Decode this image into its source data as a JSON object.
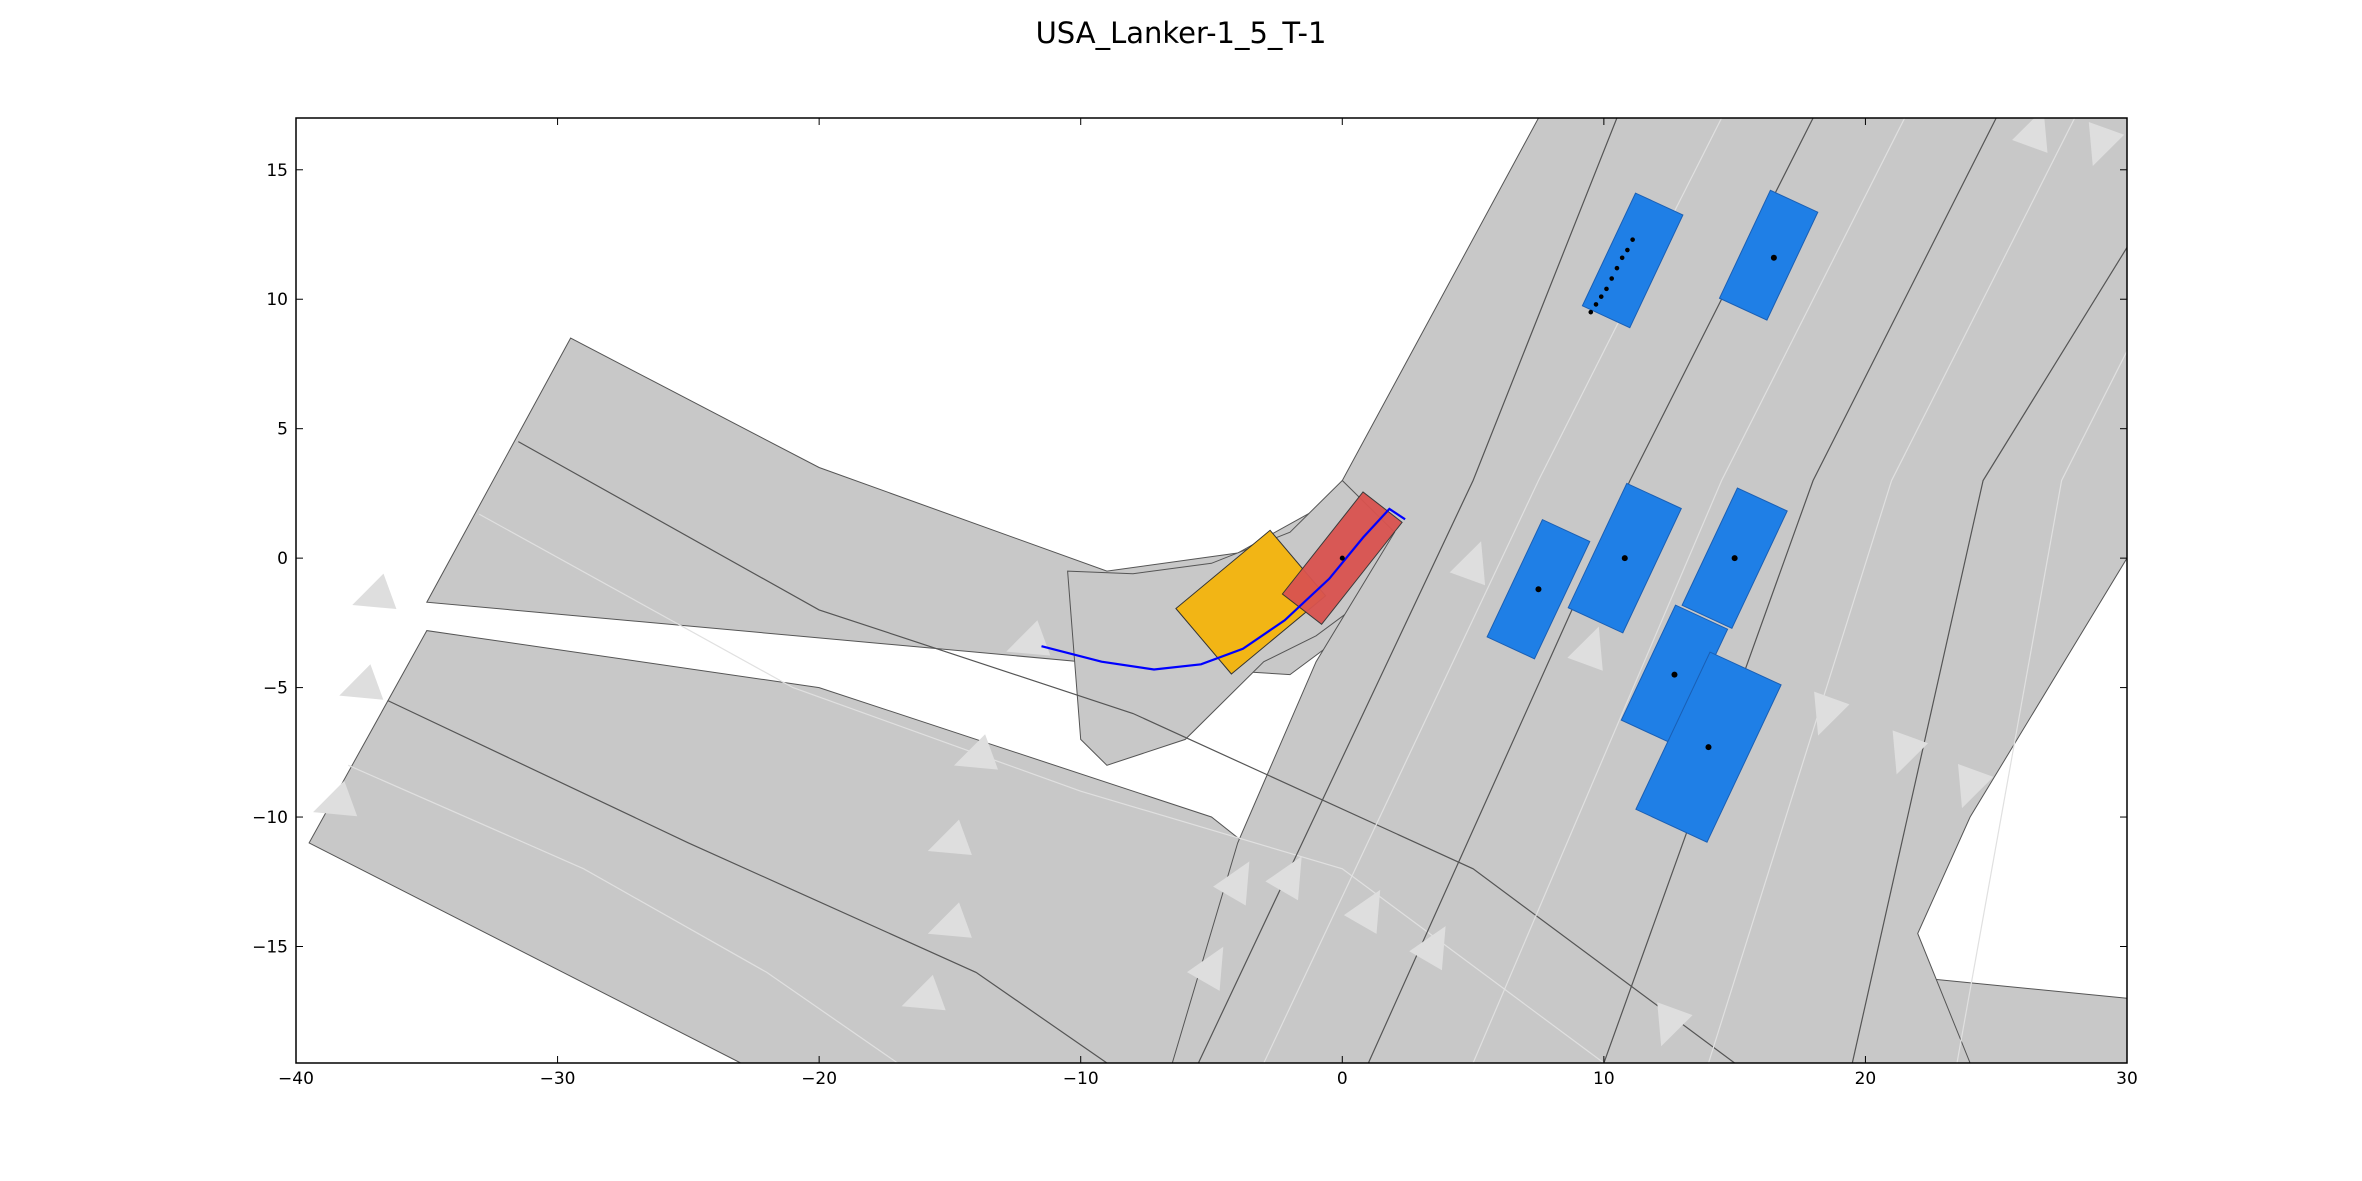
{
  "chart_data": {
    "type": "scatter",
    "title": "USA_Lanker-1_5_T-1",
    "xlabel": "",
    "ylabel": "",
    "xlim": [
      -40,
      30
    ],
    "ylim": [
      -19.5,
      17
    ],
    "xticks": [
      -40,
      -30,
      -20,
      -10,
      0,
      10,
      20,
      30
    ],
    "yticks": [
      -15,
      -10,
      -5,
      0,
      5,
      10,
      15
    ],
    "grid": false,
    "colors": {
      "road": "#c8c8c8",
      "road_edge": "#555555",
      "lane_divider": "#e0e0e0",
      "arrow": "#dedede",
      "obstacle": "#1f7fe6",
      "ego": "#d9534f",
      "goal": "#f2b515",
      "trajectory": "#0000ff"
    },
    "road_regions": [
      {
        "name": "top-left-approach",
        "points": [
          [
            -29.5,
            8.5
          ],
          [
            -35,
            -1.7
          ],
          [
            -10,
            -4
          ],
          [
            -2,
            -4.5
          ],
          [
            0,
            -3
          ],
          [
            3,
            0
          ],
          [
            4.5,
            3
          ],
          [
            1,
            3
          ],
          [
            -4,
            0.2
          ],
          [
            -9,
            -0.5
          ],
          [
            -20,
            3.5
          ]
        ]
      },
      {
        "name": "curve-inner",
        "points": [
          [
            -10.5,
            -0.5
          ],
          [
            -8,
            -0.6
          ],
          [
            -5,
            -0.2
          ],
          [
            -2,
            1
          ],
          [
            0,
            3
          ],
          [
            3,
            3
          ],
          [
            2,
            0.5
          ],
          [
            1,
            -1.5
          ],
          [
            -1,
            -3
          ],
          [
            -3,
            -4
          ],
          [
            -6,
            -7
          ],
          [
            -9,
            -8
          ],
          [
            -10,
            -7
          ]
        ]
      },
      {
        "name": "bottom-left-roadway",
        "points": [
          [
            -35,
            -2.8
          ],
          [
            -39.5,
            -11
          ],
          [
            -23,
            -19.5
          ],
          [
            30,
            -19.5
          ],
          [
            30,
            -17
          ],
          [
            0,
            -14
          ],
          [
            -5,
            -10
          ],
          [
            -20,
            -5
          ]
        ]
      },
      {
        "name": "main-vertical-road",
        "points": [
          [
            7.5,
            17
          ],
          [
            30,
            17
          ],
          [
            30,
            0
          ],
          [
            24,
            -10
          ],
          [
            22,
            -14.5
          ],
          [
            24,
            -19.5
          ],
          [
            -6.5,
            -19.5
          ],
          [
            -4,
            -11
          ],
          [
            -1,
            -4
          ],
          [
            2,
            1
          ],
          [
            0,
            3
          ]
        ]
      }
    ],
    "lane_lines": [
      [
        [
          -31.5,
          4.5
        ],
        [
          -20,
          -2
        ],
        [
          -8,
          -6
        ],
        [
          5,
          -12
        ],
        [
          15,
          -19.5
        ]
      ],
      [
        [
          -33,
          1.7
        ],
        [
          -21,
          -5
        ],
        [
          -10,
          -9
        ],
        [
          0,
          -12
        ],
        [
          10,
          -19.5
        ]
      ],
      [
        [
          -36.5,
          -5.5
        ],
        [
          -25,
          -11
        ],
        [
          -14,
          -16
        ],
        [
          -9,
          -19.5
        ]
      ],
      [
        [
          -38,
          -8
        ],
        [
          -29,
          -12
        ],
        [
          -22,
          -16
        ],
        [
          -17,
          -19.5
        ]
      ],
      [
        [
          -5.5,
          -19.5
        ],
        [
          5,
          3
        ],
        [
          10.5,
          17
        ]
      ],
      [
        [
          -3,
          -19.5
        ],
        [
          7.5,
          3
        ],
        [
          14.5,
          17
        ]
      ],
      [
        [
          1,
          -19.5
        ],
        [
          11,
          3
        ],
        [
          18,
          17
        ]
      ],
      [
        [
          5,
          -19.5
        ],
        [
          14.5,
          3
        ],
        [
          21.5,
          17
        ]
      ],
      [
        [
          10,
          -19.5
        ],
        [
          18,
          3
        ],
        [
          25,
          17
        ]
      ],
      [
        [
          14,
          -19.5
        ],
        [
          21,
          3
        ],
        [
          28,
          17
        ]
      ],
      [
        [
          19.5,
          -19.5
        ],
        [
          24.5,
          3
        ],
        [
          30,
          12
        ]
      ],
      [
        [
          23.5,
          -19.5
        ],
        [
          27.5,
          3
        ],
        [
          30,
          8
        ]
      ]
    ],
    "direction_arrows": [
      [
        -12,
        -3.3,
        200
      ],
      [
        -14,
        -7.7,
        200
      ],
      [
        -15,
        -11,
        200
      ],
      [
        -15,
        -14.2,
        200
      ],
      [
        -16,
        -17,
        200
      ],
      [
        -37,
        -1.5,
        200
      ],
      [
        -37.5,
        -5,
        200
      ],
      [
        -38.5,
        -9.5,
        200
      ],
      [
        -4,
        -12.5,
        60
      ],
      [
        -2,
        -12.3,
        60
      ],
      [
        1,
        -13.6,
        60
      ],
      [
        3.5,
        -15,
        60
      ],
      [
        -5,
        -15.8,
        60
      ],
      [
        5,
        -0.2,
        70
      ],
      [
        9.5,
        -3.5,
        70
      ],
      [
        26.5,
        16.5,
        70
      ],
      [
        18.5,
        -6,
        250
      ],
      [
        21.5,
        -7.5,
        250
      ],
      [
        24,
        -8.8,
        250
      ],
      [
        29,
        16,
        250
      ],
      [
        12.5,
        -18,
        250
      ]
    ],
    "obstacles": [
      {
        "cx": 7.5,
        "cy": -1.2,
        "len": 5,
        "wid": 2,
        "angle": 65
      },
      {
        "cx": 10.8,
        "cy": 0,
        "len": 5.3,
        "wid": 2.3,
        "angle": 65
      },
      {
        "cx": 15,
        "cy": 0,
        "len": 5,
        "wid": 2.1,
        "angle": 65
      },
      {
        "cx": 12.7,
        "cy": -4.5,
        "len": 4.9,
        "wid": 2.2,
        "angle": 65
      },
      {
        "cx": 14,
        "cy": -7.3,
        "len": 6.7,
        "wid": 3,
        "angle": 65
      },
      {
        "cx": 11.1,
        "cy": 11.5,
        "len": 4.8,
        "wid": 2,
        "angle": 65
      },
      {
        "cx": 16.3,
        "cy": 11.7,
        "len": 4.6,
        "wid": 2,
        "angle": 65
      }
    ],
    "obstacle_centers": [
      [
        7.5,
        -1.2
      ],
      [
        10.8,
        0
      ],
      [
        15,
        0
      ],
      [
        12.7,
        -4.5
      ],
      [
        14,
        -7.3
      ],
      [
        16.5,
        11.6
      ]
    ],
    "predicted_path": [
      [
        9.5,
        9.5
      ],
      [
        9.7,
        9.8
      ],
      [
        9.9,
        10.1
      ],
      [
        10.1,
        10.4
      ],
      [
        10.3,
        10.8
      ],
      [
        10.5,
        11.2
      ],
      [
        10.7,
        11.6
      ],
      [
        10.9,
        11.9
      ],
      [
        11.1,
        12.3
      ]
    ],
    "goal_region": {
      "cx": -3.5,
      "cy": -1.7,
      "len": 4.7,
      "wid": 3.3,
      "angle": 40
    },
    "ego_vehicle": {
      "cx": 0,
      "cy": 0,
      "len": 5,
      "wid": 1.9,
      "angle": 52
    },
    "ego_center": [
      0,
      0
    ],
    "trajectory": [
      [
        -11.5,
        -3.4
      ],
      [
        -9.2,
        -4
      ],
      [
        -7.2,
        -4.3
      ],
      [
        -5.4,
        -4.1
      ],
      [
        -3.8,
        -3.5
      ],
      [
        -2.2,
        -2.4
      ],
      [
        -0.5,
        -0.8
      ],
      [
        0.8,
        0.8
      ],
      [
        1.8,
        1.9
      ],
      [
        2.4,
        1.5
      ]
    ]
  }
}
